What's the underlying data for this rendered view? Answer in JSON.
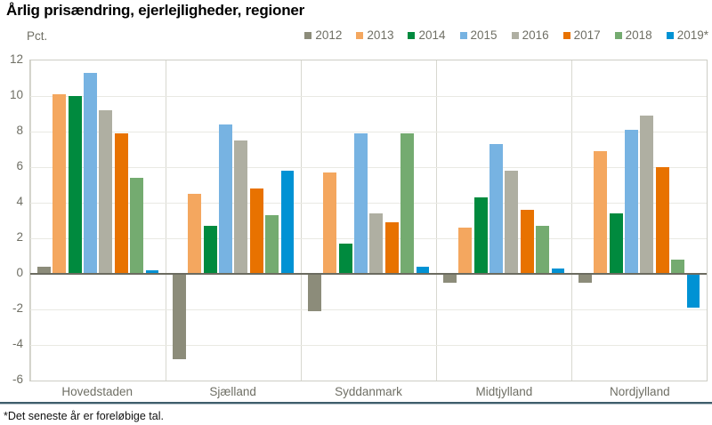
{
  "chart_data": {
    "type": "bar",
    "title": "Årlig prisændring, ejerlejligheder, regioner",
    "ylabel": "Pct.",
    "ylim": [
      -6,
      12
    ],
    "ytick_step": 2,
    "grid": true,
    "legend_position": "top-right",
    "categories": [
      "Hovedstaden",
      "Sjælland",
      "Syddanmark",
      "Midtjylland",
      "Nordjylland"
    ],
    "series": [
      {
        "name": "2012",
        "color": "#8C8C7A",
        "values": [
          0.4,
          -4.8,
          -2.1,
          -0.5,
          -0.5
        ]
      },
      {
        "name": "2013",
        "color": "#F4A75F",
        "values": [
          10.1,
          4.5,
          5.7,
          2.6,
          6.9
        ]
      },
      {
        "name": "2014",
        "color": "#008A3E",
        "values": [
          10.0,
          2.7,
          1.7,
          4.3,
          3.4
        ]
      },
      {
        "name": "2015",
        "color": "#77B3E2",
        "values": [
          11.3,
          8.4,
          7.9,
          7.3,
          8.1
        ]
      },
      {
        "name": "2016",
        "color": "#AFAFA2",
        "values": [
          9.2,
          7.5,
          3.4,
          5.8,
          8.9
        ]
      },
      {
        "name": "2017",
        "color": "#E87200",
        "values": [
          7.9,
          4.8,
          2.9,
          3.6,
          6.0
        ]
      },
      {
        "name": "2018",
        "color": "#74AB70",
        "values": [
          5.4,
          3.3,
          7.9,
          2.7,
          0.8
        ]
      },
      {
        "name": "2019*",
        "color": "#0092D4",
        "values": [
          0.2,
          5.8,
          0.4,
          0.3,
          -1.9
        ]
      }
    ],
    "footnote": "*Det seneste år er foreløbige tal."
  },
  "colors": {
    "axis_line": "#6B6B60",
    "grid_line": "#E9E9E3",
    "panel_border": "#D8D8D0",
    "plot_border": "#CDCDC5",
    "text_muted": "#6F6F65",
    "separator": "#3E5D6B"
  }
}
